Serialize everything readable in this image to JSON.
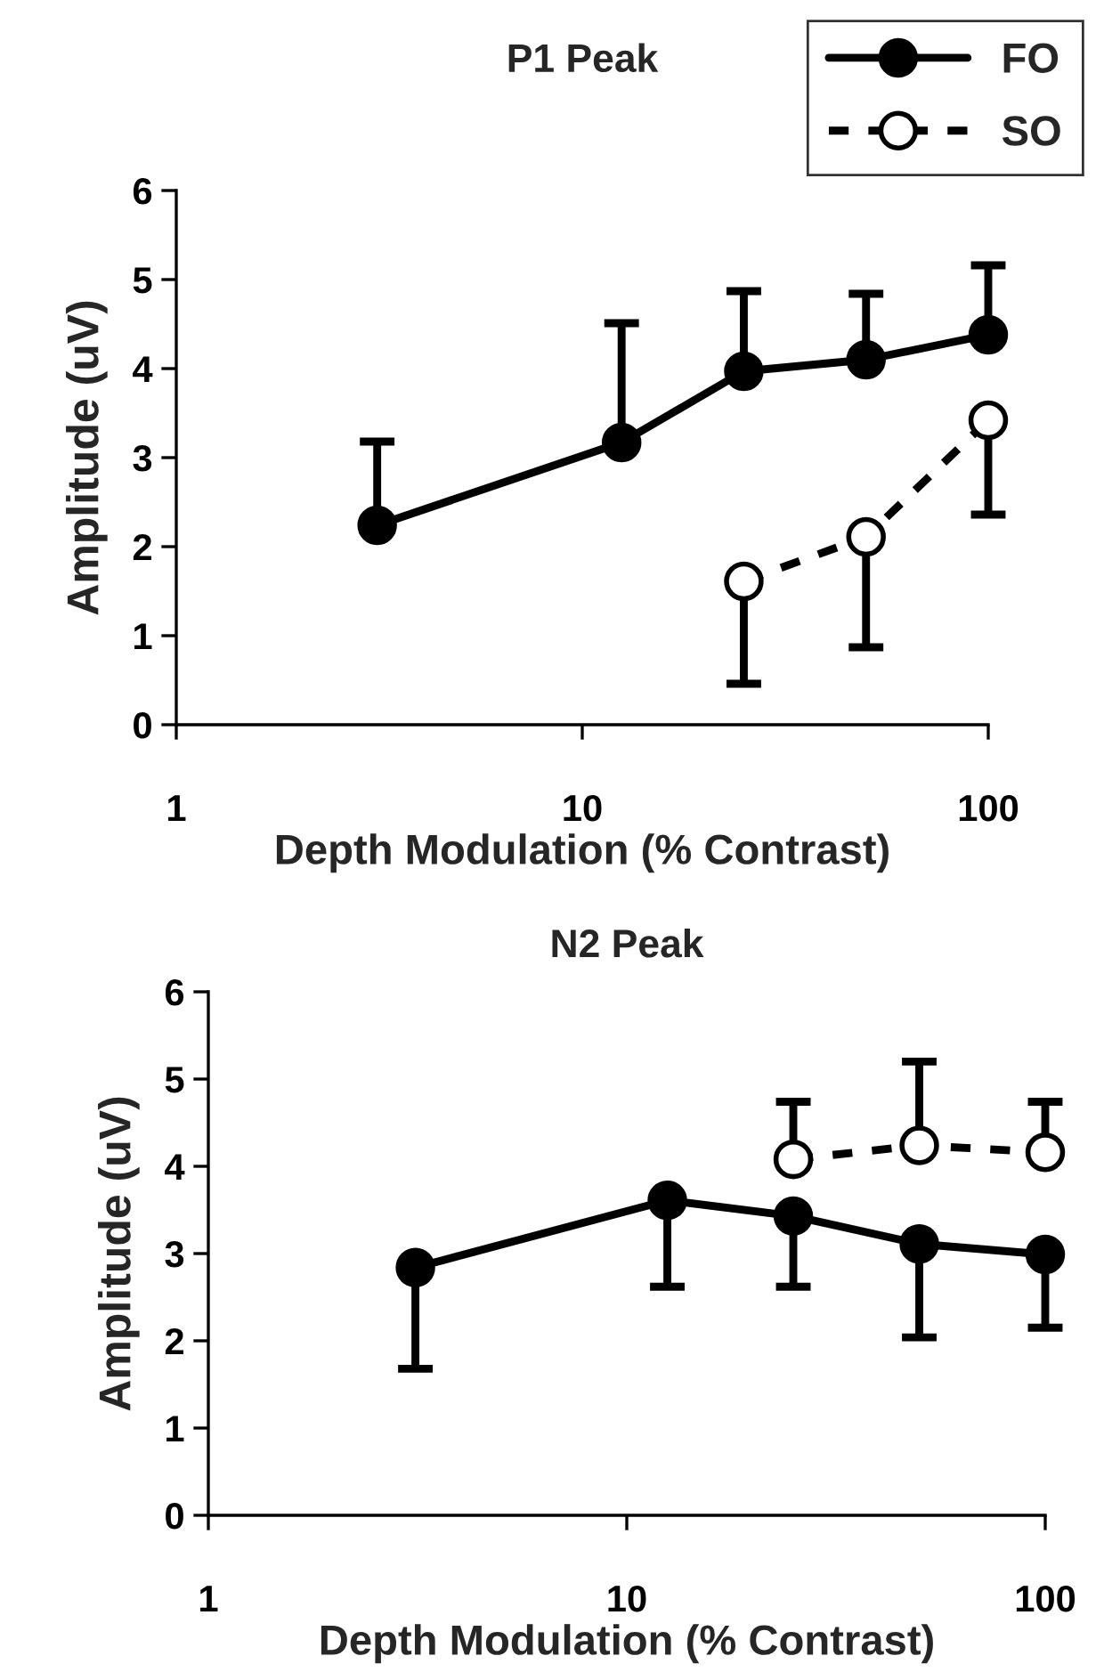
{
  "chart_data": [
    {
      "type": "line",
      "title": "P1 Peak",
      "xlabel": "Depth Modulation (% Contrast)",
      "ylabel": "Amplitude (uV)",
      "log": "x",
      "xlim": [
        1,
        100
      ],
      "xticks": [
        1,
        10,
        100
      ],
      "ylim": [
        0,
        6
      ],
      "yticks": [
        0,
        1,
        2,
        3,
        4,
        5,
        6
      ],
      "grid": false,
      "legend": "top right",
      "marker": "circle",
      "series": [
        {
          "name": "FO",
          "color": "#000000",
          "line_style": "solid",
          "x": [
            3.125,
            12.5,
            25,
            50,
            100
          ],
          "values": [
            2.24,
            3.17,
            3.97,
            4.1,
            4.38
          ],
          "errors": [
            [
              2.24,
              3.18
            ],
            [
              3.17,
              4.51
            ],
            [
              3.97,
              4.87
            ],
            [
              4.1,
              4.84
            ],
            [
              4.38,
              5.16
            ]
          ]
        },
        {
          "name": "SO",
          "color": "#000000",
          "line_style": "dashed",
          "x": [
            25,
            50,
            100
          ],
          "values": [
            1.61,
            2.11,
            3.42
          ],
          "errors": [
            [
              0.46,
              1.61
            ],
            [
              0.87,
              2.11
            ],
            [
              2.36,
              3.42
            ]
          ]
        }
      ]
    },
    {
      "type": "line",
      "title": "N2 Peak",
      "xlabel": "Depth Modulation (% Contrast)",
      "ylabel": "Amplitude (uV)",
      "log": "x",
      "xlim": [
        1,
        100
      ],
      "xticks": [
        1,
        10,
        100
      ],
      "ylim": [
        0,
        6
      ],
      "yticks": [
        0,
        1,
        2,
        3,
        4,
        5,
        6
      ],
      "grid": false,
      "marker": "circle",
      "series": [
        {
          "color": "#000000",
          "line_style": "solid",
          "x": [
            3.125,
            12.5,
            25,
            50,
            100
          ],
          "values": [
            2.84,
            3.61,
            3.43,
            3.11,
            2.99
          ],
          "errors": [
            [
              1.68,
              2.84
            ],
            [
              2.62,
              3.61
            ],
            [
              2.62,
              3.43
            ],
            [
              2.04,
              3.11
            ],
            [
              2.15,
              2.99
            ]
          ]
        },
        {
          "color": "#000000",
          "line_style": "dashed",
          "x": [
            25,
            50,
            100
          ],
          "values": [
            4.08,
            4.24,
            4.16
          ],
          "errors": [
            [
              4.08,
              4.74
            ],
            [
              4.24,
              5.2
            ],
            [
              4.16,
              4.74
            ]
          ]
        }
      ]
    }
  ]
}
